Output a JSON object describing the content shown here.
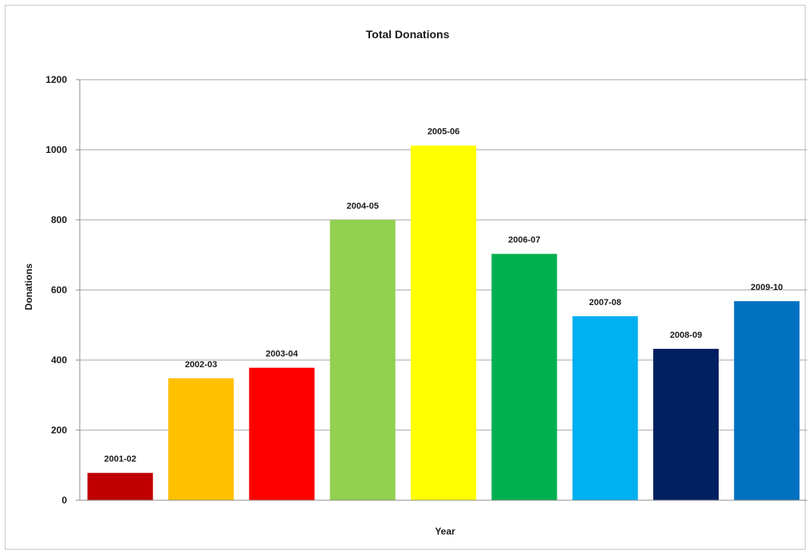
{
  "chart_data": {
    "type": "bar",
    "title": "Total Donations",
    "xlabel": "Year",
    "ylabel": "Donations",
    "categories": [
      "2001-02",
      "2002-03",
      "2003-04",
      "2004-05",
      "2005-06",
      "2006-07",
      "2007-08",
      "2008-09",
      "2009-10"
    ],
    "values": [
      78,
      348,
      378,
      800,
      1012,
      703,
      525,
      432,
      568
    ],
    "colors": [
      "#c00000",
      "#ffc000",
      "#ff0000",
      "#92d050",
      "#ffff00",
      "#00b050",
      "#00b0f0",
      "#002060",
      "#0070c0"
    ],
    "data_labels": [
      "2001-02",
      "2002-03",
      "2003-04",
      "2004-05",
      "2005-06",
      "2006-07",
      "2007-08",
      "2008-09",
      "2009-10"
    ],
    "yticks": [
      "0",
      "200",
      "400",
      "600",
      "800",
      "1000",
      "1200"
    ],
    "ylim": [
      0,
      1200
    ],
    "grid": true,
    "legend": "none"
  }
}
